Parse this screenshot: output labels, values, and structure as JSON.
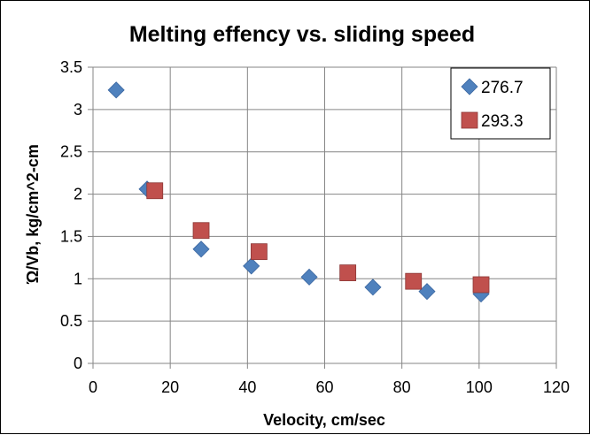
{
  "chart_data": {
    "type": "scatter",
    "title": "Melting effency vs. sliding speed",
    "xlabel": "Velocity, cm/sec",
    "ylabel": "Ώ/Vb, kg/cm^2-cm",
    "xlim": [
      0,
      120
    ],
    "ylim": [
      0,
      3.5
    ],
    "xticks": [
      0,
      20,
      40,
      60,
      80,
      100,
      120
    ],
    "yticks": [
      0,
      0.5,
      1,
      1.5,
      2,
      2.5,
      3,
      3.5
    ],
    "xtick_labels": [
      "0",
      "20",
      "40",
      "60",
      "80",
      "100",
      "120"
    ],
    "ytick_labels": [
      "0",
      "0.5",
      "1",
      "1.5",
      "2",
      "2.5",
      "3",
      "3.5"
    ],
    "grid": true,
    "legend_position": "top-right",
    "series": [
      {
        "name": "276.7",
        "marker": "diamond",
        "color": "#4F81BD",
        "points": [
          {
            "x": 6,
            "y": 3.23
          },
          {
            "x": 14,
            "y": 2.06
          },
          {
            "x": 28,
            "y": 1.35
          },
          {
            "x": 41,
            "y": 1.15
          },
          {
            "x": 56,
            "y": 1.02
          },
          {
            "x": 72.5,
            "y": 0.9
          },
          {
            "x": 86.5,
            "y": 0.85
          },
          {
            "x": 100.5,
            "y": 0.82
          }
        ]
      },
      {
        "name": "293.3",
        "marker": "square",
        "color": "#C0504D",
        "points": [
          {
            "x": 16,
            "y": 2.04
          },
          {
            "x": 28,
            "y": 1.57
          },
          {
            "x": 43,
            "y": 1.32
          },
          {
            "x": 66,
            "y": 1.07
          },
          {
            "x": 83,
            "y": 0.97
          },
          {
            "x": 100.5,
            "y": 0.93
          }
        ]
      }
    ]
  }
}
